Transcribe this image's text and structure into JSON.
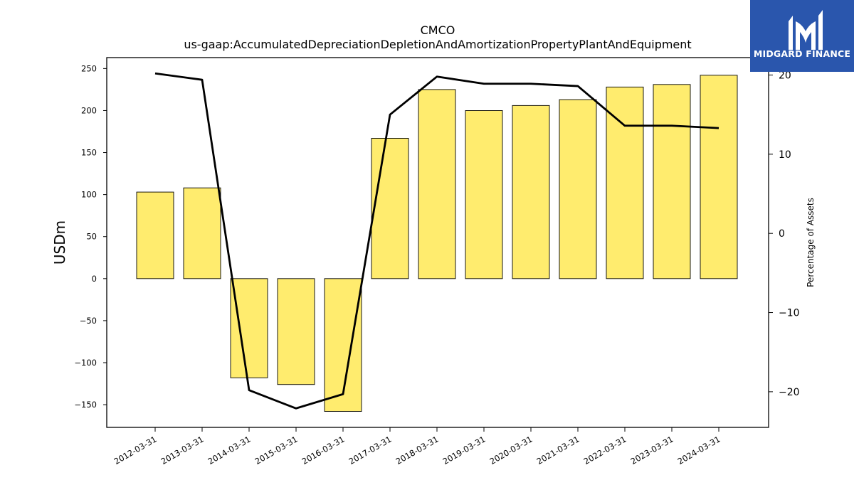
{
  "logo": {
    "text": "MIDGARD FINANCE"
  },
  "chart_data": {
    "type": "bar",
    "title": "CMCO",
    "subtitle": "us-gaap:AccumulatedDepreciationDepletionAndAmortizationPropertyPlantAndEquipment",
    "ylabel": "USDm",
    "y2label": "Percentage of Assets",
    "categories": [
      "2012-03-31",
      "2013-03-31",
      "2014-03-31",
      "2015-03-31",
      "2016-03-31",
      "2017-03-31",
      "2018-03-31",
      "2019-03-31",
      "2020-03-31",
      "2021-03-31",
      "2022-03-31",
      "2023-03-31",
      "2024-03-31"
    ],
    "ylim": [
      -177,
      263
    ],
    "y2lim": [
      -24.5,
      22.2
    ],
    "yticks": [
      250,
      200,
      150,
      100,
      50,
      0,
      -50,
      -100,
      -150
    ],
    "y2ticks": [
      20,
      10,
      0,
      -10,
      -20
    ],
    "grid": false,
    "series": [
      {
        "type": "bar",
        "axis": "left",
        "color": "#ffec6e",
        "values": [
          103,
          108,
          -118,
          -126,
          -158,
          167,
          225,
          200,
          206,
          213,
          228,
          231,
          242
        ]
      },
      {
        "type": "line",
        "axis": "right",
        "color": "#000000",
        "values": [
          20.2,
          19.4,
          -19.8,
          -22.1,
          -20.3,
          15.0,
          19.8,
          18.9,
          18.9,
          18.6,
          13.6,
          13.6,
          13.3
        ]
      }
    ]
  }
}
